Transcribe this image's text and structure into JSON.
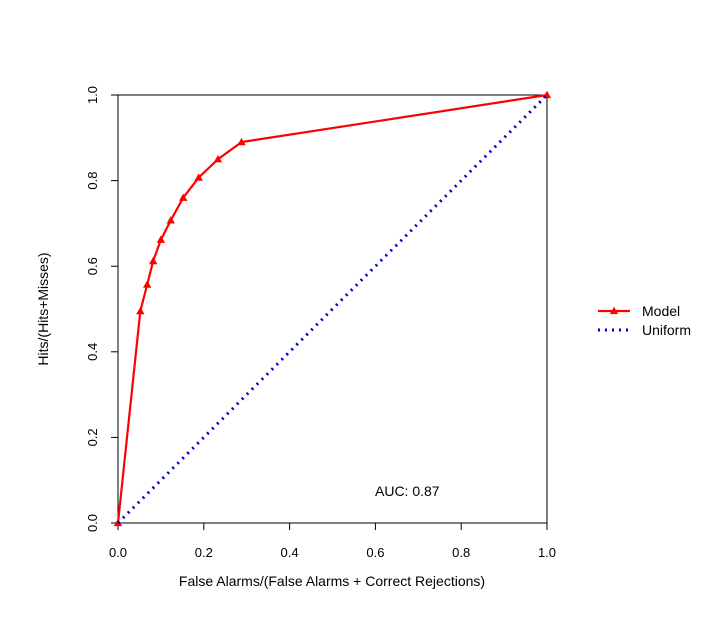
{
  "chart_data": {
    "type": "line",
    "xlabel": "False Alarms/(False Alarms + Correct Rejections)",
    "ylabel": "Hits/(Hits+Misses)",
    "xlim": [
      0,
      1
    ],
    "ylim": [
      0,
      1
    ],
    "x_ticks": [
      "0.0",
      "0.2",
      "0.4",
      "0.6",
      "0.8",
      "1.0"
    ],
    "y_ticks": [
      "0.0",
      "0.2",
      "0.4",
      "0.6",
      "0.8",
      "1.0"
    ],
    "grid": false,
    "legend_position": "right",
    "annotation": "AUC:  0.87",
    "series": [
      {
        "name": "Model",
        "color": "#ff0000",
        "line_style": "solid",
        "marker": "triangle",
        "x": [
          0.0,
          0.052,
          0.068,
          0.082,
          0.1,
          0.123,
          0.152,
          0.188,
          0.233,
          0.288,
          1.0
        ],
        "y": [
          0.0,
          0.495,
          0.557,
          0.612,
          0.662,
          0.707,
          0.76,
          0.807,
          0.85,
          0.89,
          1.0
        ]
      },
      {
        "name": "Uniform",
        "color": "#0000cc",
        "line_style": "dotted",
        "marker": "none",
        "x": [
          0.0,
          1.0
        ],
        "y": [
          0.0,
          1.0
        ]
      }
    ]
  }
}
